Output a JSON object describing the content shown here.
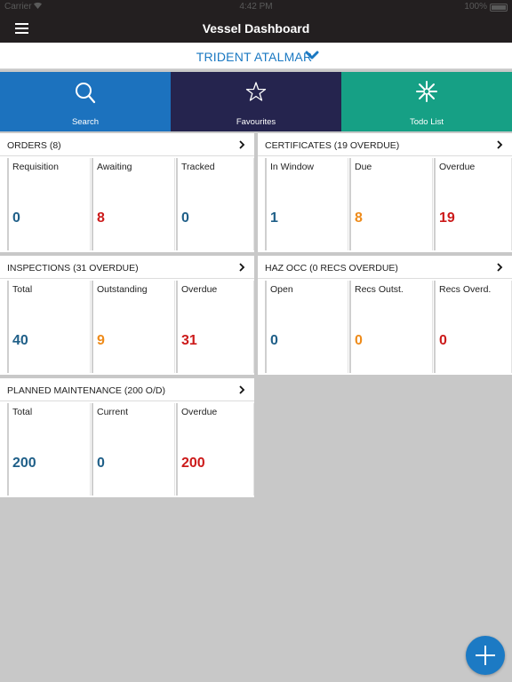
{
  "status_bar": {
    "carrier": "Carrier",
    "time": "4:42 PM",
    "battery": "100%"
  },
  "nav": {
    "title": "Vessel Dashboard",
    "menu_icon": "hamburger-menu-icon"
  },
  "vessel": {
    "name": "TRIDENT ATALMAR",
    "dropdown_icon": "chevron-down-icon"
  },
  "tabs": [
    {
      "label": "Search",
      "icon": "search-icon",
      "color": "#1c72be"
    },
    {
      "label": "Favourites",
      "icon": "star-icon",
      "color": "#25244e"
    },
    {
      "label": "Todo List",
      "icon": "snowflake-icon",
      "color": "#16a085"
    }
  ],
  "colors": {
    "blue": "#1f5f88",
    "red": "#cc1a1a",
    "orange": "#ee8b1a",
    "accent": "#1c7ac4"
  },
  "cards": {
    "orders": {
      "title": "ORDERS (8)",
      "cells": [
        {
          "label": "Requisition",
          "value": "0",
          "color": "blue"
        },
        {
          "label": "Awaiting",
          "value": "8",
          "color": "red"
        },
        {
          "label": "Tracked",
          "value": "0",
          "color": "blue"
        }
      ]
    },
    "certificates": {
      "title": "CERTIFICATES (19 OVERDUE)",
      "cells": [
        {
          "label": "In Window",
          "value": "1",
          "color": "blue"
        },
        {
          "label": "Due",
          "value": "8",
          "color": "orange"
        },
        {
          "label": "Overdue",
          "value": "19",
          "color": "red"
        }
      ]
    },
    "inspections": {
      "title": "INSPECTIONS (31 OVERDUE)",
      "cells": [
        {
          "label": "Total",
          "value": "40",
          "color": "blue"
        },
        {
          "label": "Outstanding",
          "value": "9",
          "color": "orange"
        },
        {
          "label": "Overdue",
          "value": "31",
          "color": "red"
        }
      ]
    },
    "haz_occ": {
      "title": "HAZ OCC (0 RECS OVERDUE)",
      "cells": [
        {
          "label": "Open",
          "value": "0",
          "color": "blue"
        },
        {
          "label": "Recs Outst.",
          "value": "0",
          "color": "orange"
        },
        {
          "label": "Recs Overd.",
          "value": "0",
          "color": "red"
        }
      ]
    },
    "planned_maintenance": {
      "title": "PLANNED MAINTENANCE (200 O/D)",
      "cells": [
        {
          "label": "Total",
          "value": "200",
          "color": "blue"
        },
        {
          "label": "Current",
          "value": "0",
          "color": "blue"
        },
        {
          "label": "Overdue",
          "value": "200",
          "color": "red"
        }
      ]
    }
  },
  "fab": {
    "icon": "plus-icon"
  }
}
